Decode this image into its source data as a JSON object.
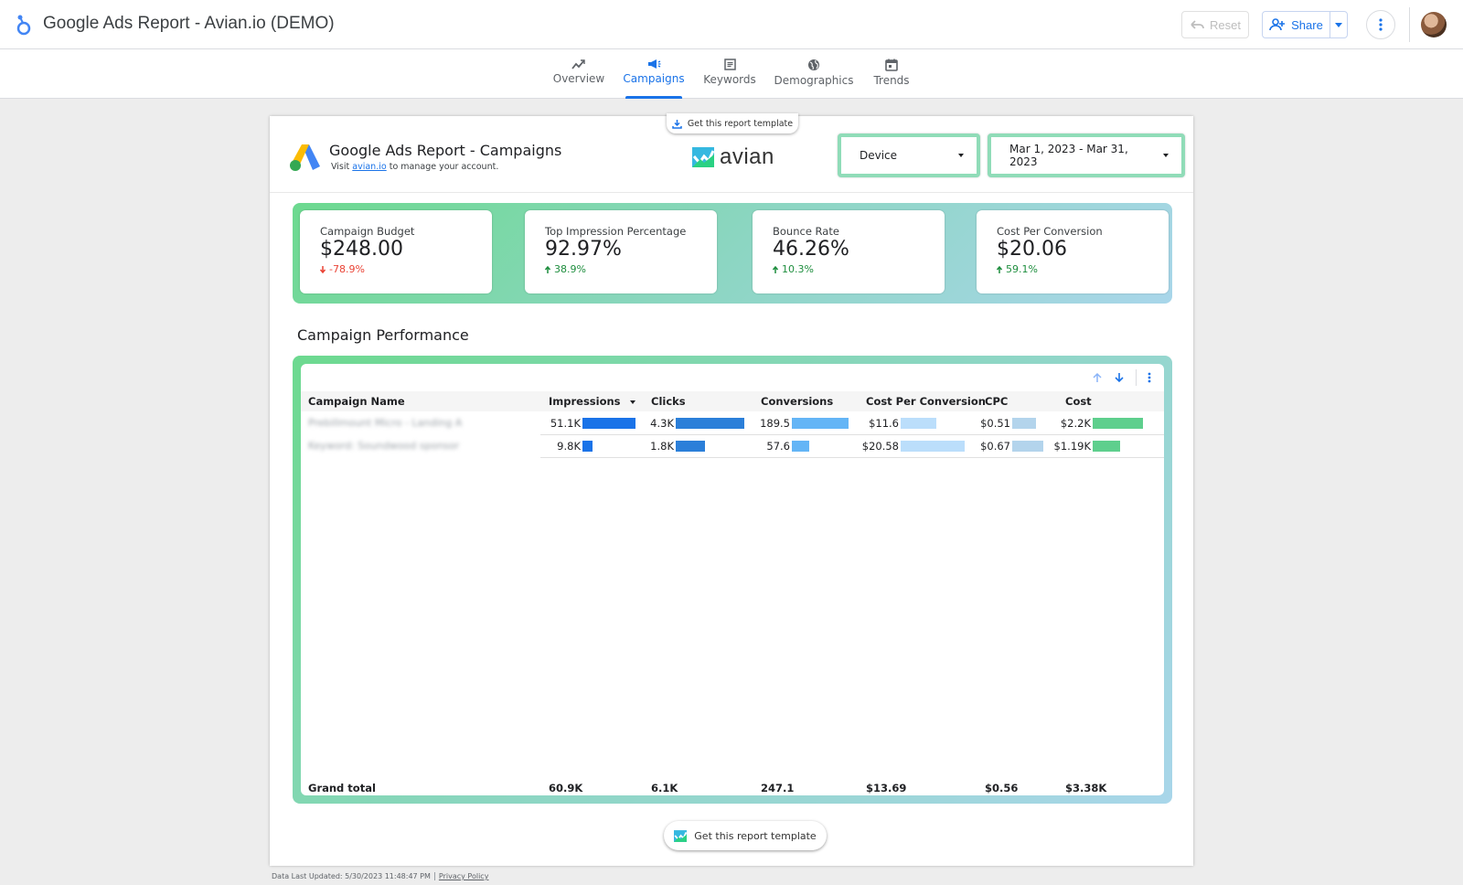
{
  "app": {
    "title": "Google Ads Report - Avian.io (DEMO)",
    "reset_label": "Reset",
    "share_label": "Share"
  },
  "nav": {
    "tabs": [
      {
        "label": "Overview",
        "icon": "trend-icon"
      },
      {
        "label": "Campaigns",
        "icon": "megaphone-icon",
        "active": true
      },
      {
        "label": "Keywords",
        "icon": "document-icon"
      },
      {
        "label": "Demographics",
        "icon": "globe-icon"
      },
      {
        "label": "Trends",
        "icon": "calendar-icon"
      }
    ]
  },
  "report": {
    "template_top_label": "Get this report template",
    "title": "Google Ads Report - Campaigns",
    "sub_prefix": "Visit",
    "sub_link": "avian.io",
    "sub_suffix": "to manage your account.",
    "brand": "avian",
    "device_filter": "Device",
    "date_range": "Mar 1, 2023 - Mar 31, 2023",
    "template_bottom_label": "Get this report template"
  },
  "scorecards": [
    {
      "label": "Campaign Budget",
      "value": "$248.00",
      "change": "-78.9%",
      "direction": "down"
    },
    {
      "label": "Top Impression Percentage",
      "value": "92.97%",
      "change": "38.9%",
      "direction": "up"
    },
    {
      "label": "Bounce Rate",
      "value": "46.26%",
      "change": "10.3%",
      "direction": "up"
    },
    {
      "label": "Cost Per Conversion",
      "value": "$20.06",
      "change": "59.1%",
      "direction": "up"
    }
  ],
  "section_title": "Campaign Performance",
  "table": {
    "headers": [
      "Campaign Name",
      "Impressions",
      "Clicks",
      "Conversions",
      "Cost Per Conversion",
      "CPC",
      "Cost"
    ],
    "rows": [
      {
        "name": "Prebillmount Micro - Landing A",
        "impressions": "51.1K",
        "clicks": "4.3K",
        "conversions": "189.5",
        "cpc_conv": "$11.6",
        "cpc": "$0.51",
        "cost": "$2.2K",
        "bars": {
          "impressions": 1.0,
          "clicks": 1.0,
          "conversions": 1.0,
          "cpc_conv": 0.56,
          "cpc": 0.76,
          "cost": 1.0
        }
      },
      {
        "name": "Keyword: Soundwood sponsor",
        "impressions": "9.8K",
        "clicks": "1.8K",
        "conversions": "57.6",
        "cpc_conv": "$20.58",
        "cpc": "$0.67",
        "cost": "$1.19K",
        "bars": {
          "impressions": 0.19,
          "clicks": 0.42,
          "conversions": 0.3,
          "cpc_conv": 1.0,
          "cpc": 1.0,
          "cost": 0.54
        }
      }
    ],
    "totals": {
      "label": "Grand total",
      "impressions": "60.9K",
      "clicks": "6.1K",
      "conversions": "247.1",
      "cpc_conv": "$13.69",
      "cpc": "$0.56",
      "cost": "$3.38K"
    }
  },
  "footer": {
    "updated": "Data Last Updated: 5/30/2023 11:48:47 PM",
    "privacy": "Privacy Policy"
  },
  "colors": {
    "accent": "#1a73e8",
    "impressions_bar": "#1a73e8",
    "clicks_bar": "#2b7fd9",
    "conversions_bar": "#64b5f6",
    "cpc_conv_bar": "#bbdefb",
    "cpc_bar": "#b3d4ec",
    "cost_bar": "#5ecf8d",
    "negative": "#ea4335",
    "positive": "#1e8e3e"
  }
}
